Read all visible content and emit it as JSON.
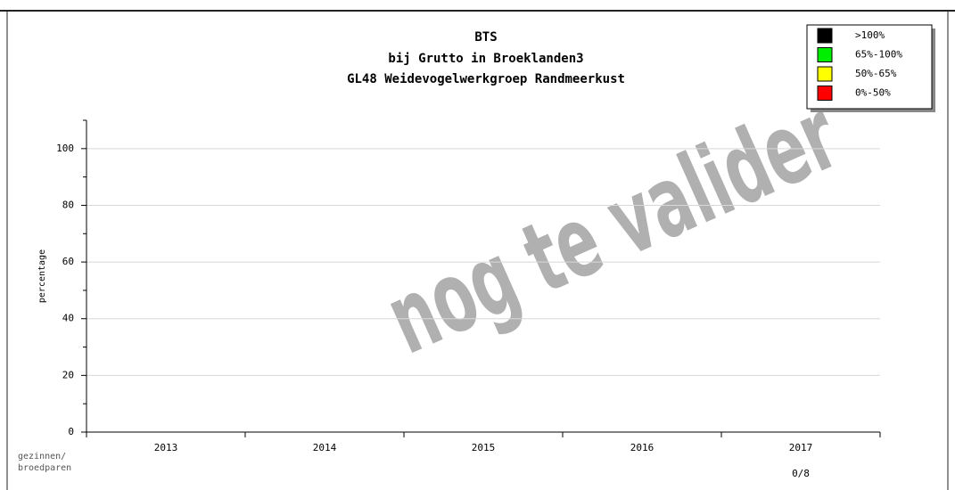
{
  "chart_data": {
    "type": "bar",
    "title": [
      "BTS",
      "bij Grutto in Broeklanden3",
      "GL48 Weidevogelwerkgroep Randmeerkust"
    ],
    "ylabel": "percentage",
    "xlabel": [
      "gezinnen/",
      "broedparen"
    ],
    "categories": [
      "2013",
      "2014",
      "2015",
      "2016",
      "2017"
    ],
    "counts": [
      null,
      null,
      null,
      null,
      "0/8"
    ],
    "ylim": [
      0,
      110
    ],
    "yticks": [
      0,
      20,
      40,
      60,
      80,
      100
    ],
    "minor_yticks": [
      10,
      30,
      50,
      70,
      90,
      110
    ],
    "grid": true,
    "legend": {
      "position": "upper right",
      "items": [
        {
          "label": ">100%",
          "color": "#000000"
        },
        {
          "label": "65%-100%",
          "color": "#00ee00"
        },
        {
          "label": "50%-65%",
          "color": "#ffff00"
        },
        {
          "label": "0%-50%",
          "color": "#ff0000"
        }
      ]
    },
    "watermark": "nog te valider"
  }
}
